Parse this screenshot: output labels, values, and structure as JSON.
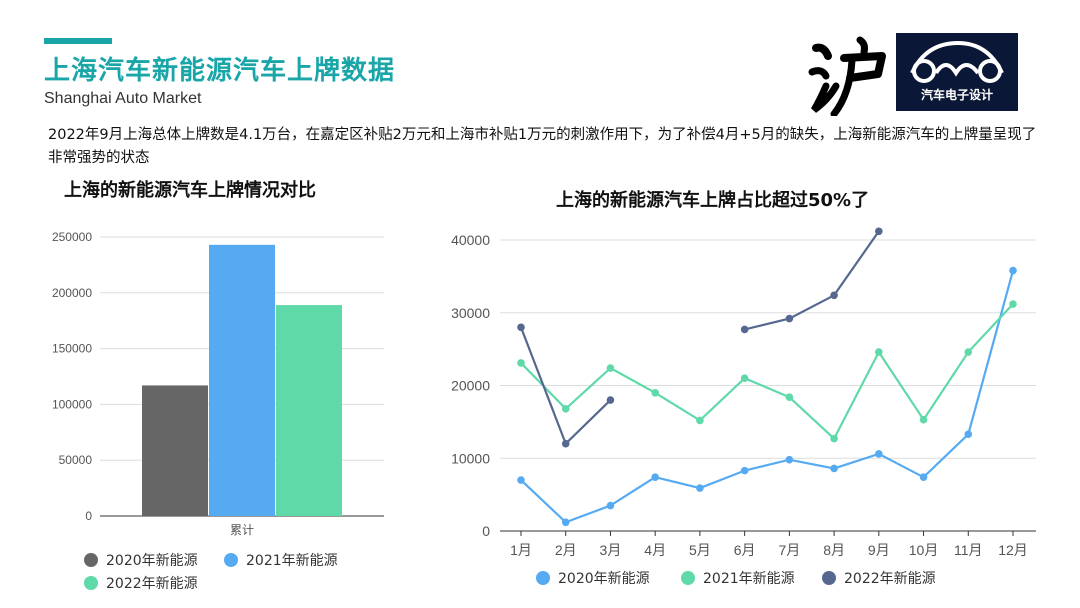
{
  "header": {
    "title": "上海汽车新能源汽车上牌数据",
    "subtitle": "Shanghai Auto Market",
    "calligraphy_text": "沪",
    "logo_text": "汽车电子设计"
  },
  "description": "2022年9月上海总体上牌数是4.1万台，在嘉定区补贴2万元和上海市补贴1万元的刺激作用下，为了补偿4月+5月的缺失，上海新能源汽车的上牌量呈现了非常强势的状态",
  "colors": {
    "accent": "#1aa6a8",
    "s2020_bar": "#666666",
    "s2021_bar": "#56aaf2",
    "s2022_bar": "#5fd9a8",
    "s2020_line": "#56aaf2",
    "s2021_line": "#5fd9a8",
    "s2022_line": "#56688f"
  },
  "chart_data": [
    {
      "type": "bar",
      "title": "上海的新能源汽车上牌情况对比",
      "categories": [
        "累计"
      ],
      "yticks": [
        0,
        50000,
        100000,
        150000,
        200000,
        250000
      ],
      "ylim": [
        0,
        250000
      ],
      "grid": true,
      "legend_position": "bottom",
      "series": [
        {
          "name": "2020年新能源",
          "values": [
            117000
          ]
        },
        {
          "name": "2021年新能源",
          "values": [
            243000
          ]
        },
        {
          "name": "2022年新能源",
          "values": [
            189000
          ]
        }
      ]
    },
    {
      "type": "line",
      "title": "上海的新能源汽车上牌占比超过50%了",
      "categories": [
        "1月",
        "2月",
        "3月",
        "4月",
        "5月",
        "6月",
        "7月",
        "8月",
        "9月",
        "10月",
        "11月",
        "12月"
      ],
      "yticks": [
        0,
        10000,
        20000,
        30000,
        40000
      ],
      "ylim": [
        0,
        40000
      ],
      "grid": true,
      "legend_position": "bottom",
      "series": [
        {
          "name": "2020年新能源",
          "values": [
            7000,
            1200,
            3500,
            7400,
            5900,
            8300,
            9800,
            8600,
            10600,
            7400,
            13300,
            35800
          ]
        },
        {
          "name": "2021年新能源",
          "values": [
            23100,
            16800,
            22400,
            19000,
            15200,
            21000,
            18400,
            12700,
            24600,
            15300,
            24600,
            31200
          ]
        },
        {
          "name": "2022年新能源",
          "values": [
            28000,
            12000,
            18000,
            null,
            null,
            27700,
            29200,
            32400,
            41200,
            null,
            null,
            null
          ]
        }
      ]
    }
  ]
}
